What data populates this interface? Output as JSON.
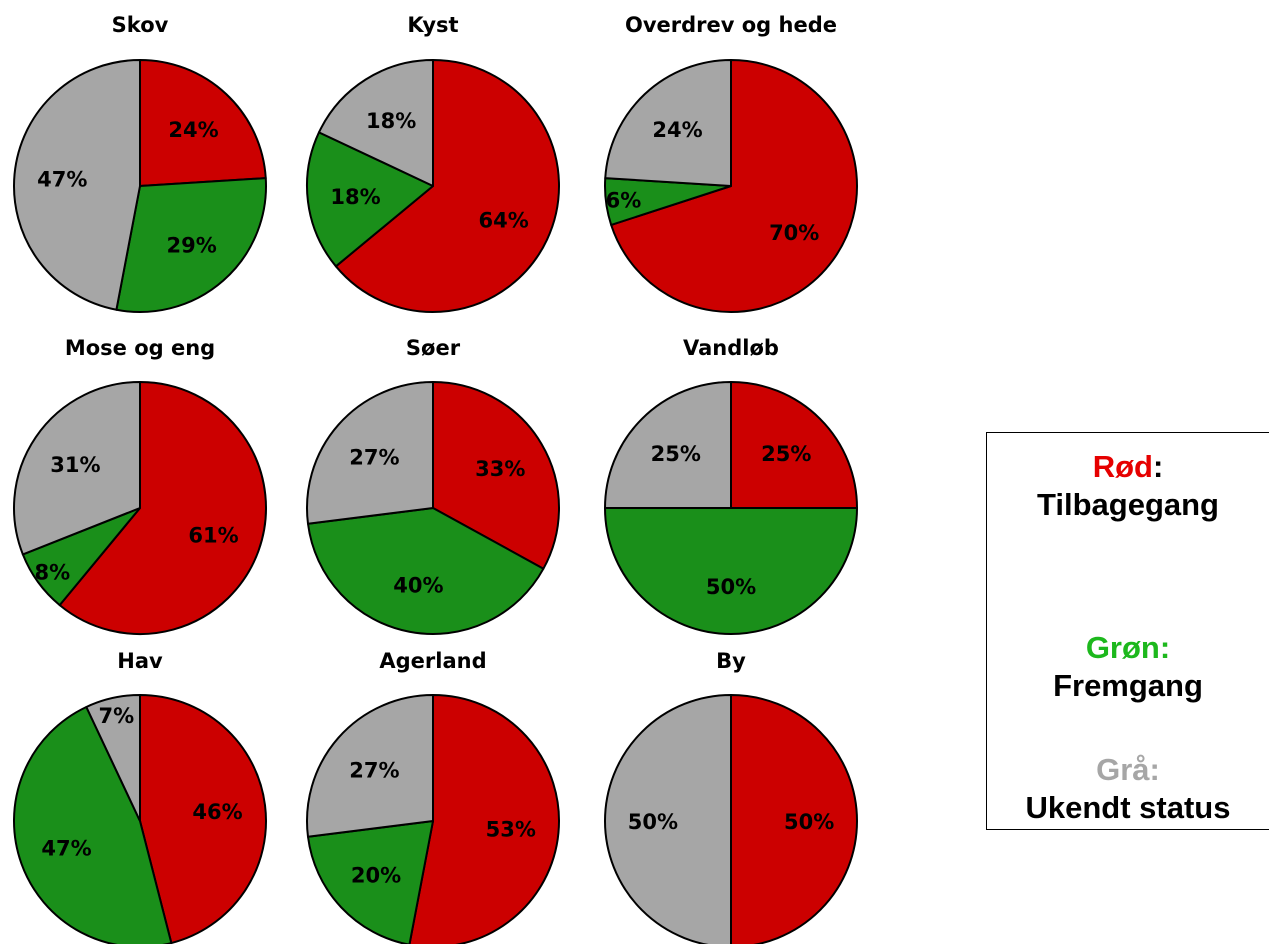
{
  "colors": {
    "red": "#cc0000",
    "green": "#1a8f1a",
    "gray": "#a6a6a6"
  },
  "chart_data": [
    {
      "type": "pie",
      "title": "Skov",
      "slices": [
        {
          "series": "red",
          "value": 24,
          "label": "24%"
        },
        {
          "series": "green",
          "value": 29,
          "label": "29%"
        },
        {
          "series": "gray",
          "value": 47,
          "label": "47%"
        }
      ]
    },
    {
      "type": "pie",
      "title": "Kyst",
      "slices": [
        {
          "series": "red",
          "value": 64,
          "label": "64%"
        },
        {
          "series": "green",
          "value": 18,
          "label": "18%"
        },
        {
          "series": "gray",
          "value": 18,
          "label": "18%"
        }
      ]
    },
    {
      "type": "pie",
      "title": "Overdrev og hede",
      "slices": [
        {
          "series": "red",
          "value": 70,
          "label": "70%"
        },
        {
          "series": "green",
          "value": 6,
          "label": "6%"
        },
        {
          "series": "gray",
          "value": 24,
          "label": "24%"
        }
      ]
    },
    {
      "type": "pie",
      "title": "Mose og eng",
      "slices": [
        {
          "series": "red",
          "value": 61,
          "label": "61%"
        },
        {
          "series": "green",
          "value": 8,
          "label": "8%"
        },
        {
          "series": "gray",
          "value": 31,
          "label": "31%"
        }
      ]
    },
    {
      "type": "pie",
      "title": "Søer",
      "slices": [
        {
          "series": "red",
          "value": 33,
          "label": "33%"
        },
        {
          "series": "green",
          "value": 40,
          "label": "40%"
        },
        {
          "series": "gray",
          "value": 27,
          "label": "27%"
        }
      ]
    },
    {
      "type": "pie",
      "title": "Vandløb",
      "slices": [
        {
          "series": "red",
          "value": 25,
          "label": "25%"
        },
        {
          "series": "green",
          "value": 50,
          "label": "50%"
        },
        {
          "series": "gray",
          "value": 25,
          "label": "25%"
        }
      ]
    },
    {
      "type": "pie",
      "title": "Hav",
      "slices": [
        {
          "series": "red",
          "value": 46,
          "label": "46%"
        },
        {
          "series": "green",
          "value": 47,
          "label": "47%"
        },
        {
          "series": "gray",
          "value": 7,
          "label": "7%"
        }
      ]
    },
    {
      "type": "pie",
      "title": "Agerland",
      "slices": [
        {
          "series": "red",
          "value": 53,
          "label": "53%"
        },
        {
          "series": "green",
          "value": 20,
          "label": "20%"
        },
        {
          "series": "gray",
          "value": 27,
          "label": "27%"
        }
      ]
    },
    {
      "type": "pie",
      "title": "By",
      "slices": [
        {
          "series": "red",
          "value": 50,
          "label": "50%"
        },
        {
          "series": "green",
          "value": 0,
          "label": ""
        },
        {
          "series": "gray",
          "value": 50,
          "label": "50%"
        }
      ]
    }
  ],
  "legend": {
    "red": {
      "key": "Rød",
      "colon": ":",
      "desc": "Tilbagegang"
    },
    "green": {
      "key": "Grøn:",
      "colon": "",
      "desc": "Fremgang"
    },
    "gray": {
      "key": "Grå:",
      "colon": "",
      "desc": "Ukendt status"
    }
  }
}
